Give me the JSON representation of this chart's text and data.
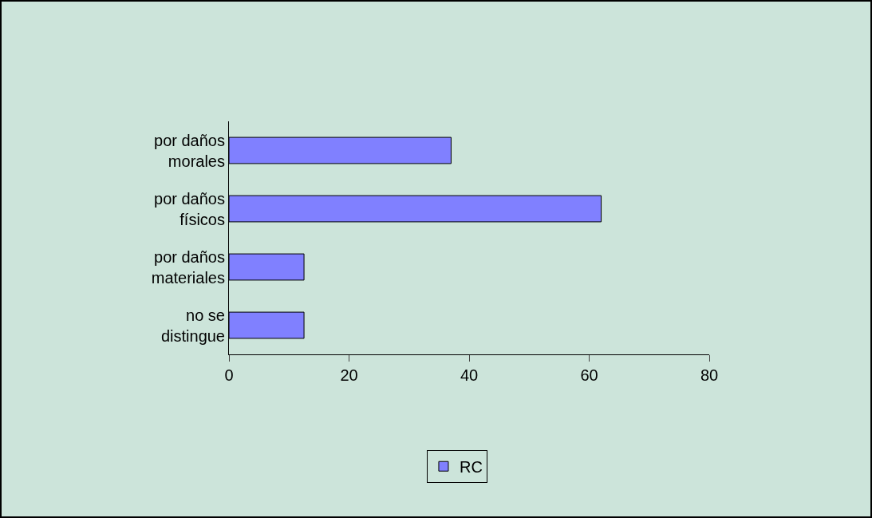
{
  "chart_data": {
    "type": "bar",
    "orientation": "horizontal",
    "categories": [
      "por daños morales",
      "por daños físicos",
      "por daños materiales",
      "no se distingue"
    ],
    "series": [
      {
        "name": "RC",
        "color": "#8080ff",
        "values": [
          37,
          62,
          12.5,
          12.5
        ]
      }
    ],
    "xlim": [
      0,
      80
    ],
    "xticks": [
      0,
      20,
      40,
      60,
      80
    ],
    "grid": false,
    "legend": "bottom"
  }
}
